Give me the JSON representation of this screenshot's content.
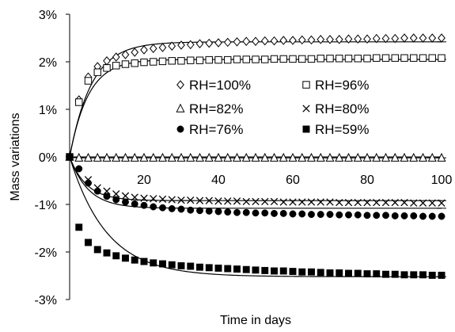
{
  "chart_data": {
    "type": "scatter",
    "xlabel": "Time in days",
    "ylabel": "Mass variations",
    "xlim": [
      0,
      100
    ],
    "ylim": [
      -3,
      3
    ],
    "x_ticks": [
      "20",
      "40",
      "60",
      "80",
      "100"
    ],
    "y_ticks": [
      "3%",
      "2%",
      "1%",
      "0%",
      "-1%",
      "-2%",
      "-3%"
    ],
    "legend_position": "center-right",
    "series": [
      {
        "name": "RH=100%",
        "marker": "diamond",
        "x": [
          0,
          2.5,
          5,
          7.5,
          10,
          12.5,
          15,
          17.5,
          20,
          22.5,
          25,
          27.5,
          30,
          32.5,
          35,
          37.5,
          40,
          42.5,
          45,
          47.5,
          50,
          52.5,
          55,
          57.5,
          60,
          62.5,
          65,
          67.5,
          70,
          72.5,
          75,
          77.5,
          80,
          82.5,
          85,
          87.5,
          90,
          92.5,
          95,
          97.5,
          100
        ],
        "y": [
          0,
          1.2,
          1.68,
          1.9,
          2.02,
          2.1,
          2.15,
          2.2,
          2.25,
          2.28,
          2.3,
          2.33,
          2.35,
          2.36,
          2.38,
          2.39,
          2.4,
          2.41,
          2.42,
          2.43,
          2.43,
          2.44,
          2.44,
          2.45,
          2.45,
          2.46,
          2.46,
          2.47,
          2.47,
          2.47,
          2.48,
          2.48,
          2.48,
          2.49,
          2.49,
          2.49,
          2.5,
          2.5,
          2.5,
          2.5,
          2.5
        ]
      },
      {
        "name": "RH=96%",
        "marker": "square-open",
        "x": [
          0,
          2.5,
          5,
          7.5,
          10,
          12.5,
          15,
          17.5,
          20,
          22.5,
          25,
          27.5,
          30,
          32.5,
          35,
          37.5,
          40,
          42.5,
          45,
          47.5,
          50,
          52.5,
          55,
          57.5,
          60,
          62.5,
          65,
          67.5,
          70,
          72.5,
          75,
          77.5,
          80,
          82.5,
          85,
          87.5,
          90,
          92.5,
          95,
          97.5,
          100
        ],
        "y": [
          0,
          1.15,
          1.6,
          1.78,
          1.87,
          1.92,
          1.95,
          1.97,
          1.99,
          2.0,
          2.01,
          2.02,
          2.02,
          2.03,
          2.03,
          2.04,
          2.04,
          2.04,
          2.05,
          2.05,
          2.05,
          2.05,
          2.06,
          2.06,
          2.06,
          2.06,
          2.06,
          2.07,
          2.07,
          2.07,
          2.07,
          2.07,
          2.07,
          2.08,
          2.08,
          2.08,
          2.08,
          2.08,
          2.08,
          2.08,
          2.08
        ]
      },
      {
        "name": "RH=82%",
        "marker": "triangle-open",
        "x": [
          0,
          2.5,
          5,
          7.5,
          10,
          12.5,
          15,
          17.5,
          20,
          22.5,
          25,
          27.5,
          30,
          32.5,
          35,
          37.5,
          40,
          42.5,
          45,
          47.5,
          50,
          52.5,
          55,
          57.5,
          60,
          62.5,
          65,
          67.5,
          70,
          72.5,
          75,
          77.5,
          80,
          82.5,
          85,
          87.5,
          90,
          92.5,
          95,
          97.5,
          100
        ],
        "y": [
          0,
          -0.02,
          -0.02,
          -0.02,
          -0.02,
          -0.02,
          -0.02,
          -0.02,
          -0.02,
          -0.02,
          -0.02,
          -0.02,
          -0.02,
          -0.02,
          -0.02,
          -0.02,
          -0.02,
          -0.02,
          -0.02,
          -0.02,
          -0.02,
          -0.02,
          -0.02,
          -0.02,
          -0.02,
          -0.02,
          -0.02,
          -0.02,
          -0.02,
          -0.02,
          -0.02,
          -0.02,
          -0.02,
          -0.02,
          -0.02,
          -0.02,
          -0.02,
          -0.02,
          -0.02,
          -0.02,
          -0.02
        ]
      },
      {
        "name": "RH=80%",
        "marker": "cross",
        "x": [
          0,
          5,
          7.5,
          10,
          12.5,
          15,
          17.5,
          20,
          22.5,
          25,
          27.5,
          30,
          32.5,
          35,
          37.5,
          40,
          42.5,
          45,
          47.5,
          50,
          52.5,
          55,
          57.5,
          60,
          62.5,
          65,
          67.5,
          70,
          72.5,
          75,
          77.5,
          80,
          82.5,
          85,
          87.5,
          90,
          92.5,
          95,
          97.5,
          100
        ],
        "y": [
          0,
          -0.48,
          -0.65,
          -0.72,
          -0.78,
          -0.82,
          -0.85,
          -0.87,
          -0.88,
          -0.89,
          -0.9,
          -0.91,
          -0.91,
          -0.92,
          -0.92,
          -0.93,
          -0.93,
          -0.93,
          -0.94,
          -0.94,
          -0.94,
          -0.94,
          -0.95,
          -0.95,
          -0.95,
          -0.95,
          -0.95,
          -0.95,
          -0.96,
          -0.96,
          -0.96,
          -0.96,
          -0.96,
          -0.96,
          -0.96,
          -0.96,
          -0.97,
          -0.97,
          -0.97,
          -0.97
        ]
      },
      {
        "name": "RH=76%",
        "marker": "circle-filled",
        "x": [
          0,
          2.5,
          5,
          7.5,
          10,
          12.5,
          15,
          17.5,
          20,
          22.5,
          25,
          27.5,
          30,
          32.5,
          35,
          37.5,
          40,
          42.5,
          45,
          47.5,
          50,
          52.5,
          55,
          57.5,
          60,
          62.5,
          65,
          67.5,
          70,
          72.5,
          75,
          77.5,
          80,
          82.5,
          85,
          87.5,
          90,
          92.5,
          95,
          97.5,
          100
        ],
        "y": [
          0,
          -0.25,
          -0.55,
          -0.72,
          -0.83,
          -0.9,
          -0.95,
          -0.99,
          -1.02,
          -1.05,
          -1.07,
          -1.09,
          -1.1,
          -1.12,
          -1.13,
          -1.14,
          -1.15,
          -1.16,
          -1.17,
          -1.17,
          -1.18,
          -1.18,
          -1.19,
          -1.19,
          -1.2,
          -1.2,
          -1.21,
          -1.21,
          -1.21,
          -1.22,
          -1.22,
          -1.22,
          -1.23,
          -1.23,
          -1.23,
          -1.24,
          -1.24,
          -1.24,
          -1.25,
          -1.25,
          -1.25
        ]
      },
      {
        "name": "RH=59%",
        "marker": "square-filled",
        "x": [
          0,
          2.5,
          5,
          7.5,
          10,
          12.5,
          15,
          17.5,
          20,
          22.5,
          25,
          27.5,
          30,
          32.5,
          35,
          37.5,
          40,
          42.5,
          45,
          47.5,
          50,
          52.5,
          55,
          57.5,
          60,
          62.5,
          65,
          67.5,
          70,
          72.5,
          75,
          77.5,
          80,
          82.5,
          85,
          87.5,
          90,
          92.5,
          95,
          97.5,
          100
        ],
        "y": [
          0,
          -1.48,
          -1.8,
          -1.95,
          -2.02,
          -2.08,
          -2.13,
          -2.17,
          -2.2,
          -2.23,
          -2.25,
          -2.27,
          -2.29,
          -2.3,
          -2.32,
          -2.33,
          -2.34,
          -2.35,
          -2.36,
          -2.37,
          -2.38,
          -2.39,
          -2.4,
          -2.4,
          -2.41,
          -2.42,
          -2.42,
          -2.43,
          -2.44,
          -2.44,
          -2.45,
          -2.45,
          -2.46,
          -2.46,
          -2.47,
          -2.47,
          -2.48,
          -2.48,
          -2.48,
          -2.49,
          -2.49
        ]
      }
    ],
    "fit_curves": [
      {
        "asymptote": 2.42,
        "k": 0.17
      },
      {
        "asymptote": 2.05,
        "k": 0.2
      },
      {
        "asymptote": -0.02,
        "k": 1.0
      },
      {
        "asymptote": -0.92,
        "k": 0.22
      },
      {
        "asymptote": -1.08,
        "k": 0.2
      },
      {
        "asymptote": -2.52,
        "k": 0.1
      }
    ]
  }
}
